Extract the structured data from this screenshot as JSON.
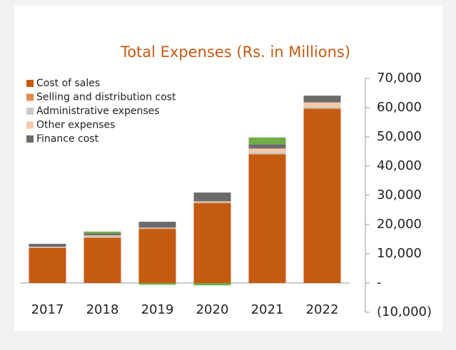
{
  "chart_data": {
    "type": "stacked_bar",
    "title": "Total Expenses (Rs. in Millions)",
    "categories": [
      "2017",
      "2018",
      "2019",
      "2020",
      "2021",
      "2022"
    ],
    "series": [
      {
        "name": "Cost of sales",
        "color": "#c55a11",
        "values": [
          12000,
          15400,
          18500,
          27300,
          43900,
          59500
        ]
      },
      {
        "name": "Selling and distribution cost",
        "color": "#e08a4c",
        "values": [
          100,
          200,
          150,
          150,
          300,
          300
        ]
      },
      {
        "name": "Administrative expenses",
        "color": "#c8c8c8",
        "values": [
          200,
          500,
          200,
          300,
          600,
          500
        ]
      },
      {
        "name": "Other expenses",
        "color": "#f4c8a8",
        "values": [
          100,
          200,
          100,
          200,
          1200,
          1500
        ]
      },
      {
        "name": "Finance cost",
        "color": "#6b6b6b",
        "values": [
          1000,
          700,
          2000,
          3000,
          1500,
          2300
        ]
      },
      {
        "color": "#70ad47",
        "values": [
          0,
          600,
          -600,
          -800,
          2300,
          0
        ]
      }
    ],
    "ylim": [
      -10000,
      70000
    ],
    "yticks": [
      {
        "value": -10000,
        "label": "(10,000)"
      },
      {
        "value": 0,
        "label": "-"
      },
      {
        "value": 10000,
        "label": "10,000"
      },
      {
        "value": 20000,
        "label": "20,000"
      },
      {
        "value": 30000,
        "label": "30,000"
      },
      {
        "value": 40000,
        "label": "40,000"
      },
      {
        "value": 50000,
        "label": "50,000"
      },
      {
        "value": 60000,
        "label": "60,000"
      },
      {
        "value": 70000,
        "label": "70,000"
      }
    ]
  }
}
